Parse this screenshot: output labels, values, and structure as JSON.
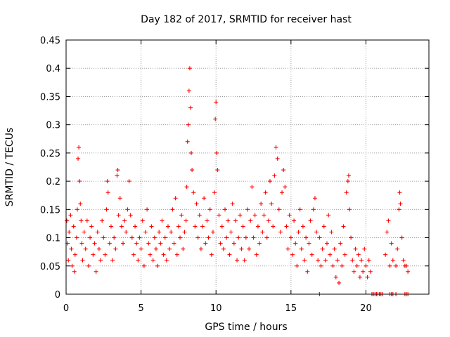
{
  "chart_data": {
    "type": "scatter",
    "title": "Day 182 of 2017, SRMTID for receiver hast",
    "xlabel": "GPS time / hours",
    "ylabel": "SRMTID / TECUs",
    "xlim": [
      0,
      24.2
    ],
    "ylim": [
      0,
      0.45
    ],
    "xticks": [
      0,
      5,
      10,
      15,
      20
    ],
    "xtick_labels": [
      "0",
      "5",
      "10",
      "15",
      "20"
    ],
    "yticks": [
      0,
      0.05,
      0.1,
      0.15,
      0.2,
      0.25,
      0.3,
      0.35,
      0.4,
      0.45
    ],
    "ytick_labels": [
      "0",
      "0.05",
      "0.1",
      "0.15",
      "0.2",
      "0.25",
      "0.3",
      "0.35",
      "0.4",
      "0.45"
    ],
    "grid": true,
    "marker": "+",
    "color": "#ff0000",
    "series": [
      {
        "points": [
          [
            0.05,
            0.13
          ],
          [
            0.1,
            0.09
          ],
          [
            0.15,
            0.06
          ],
          [
            0.2,
            0.11
          ],
          [
            0.3,
            0.14
          ],
          [
            0.35,
            0.08
          ],
          [
            0.4,
            0.05
          ],
          [
            0.5,
            0.12
          ],
          [
            0.55,
            0.04
          ],
          [
            0.6,
            0.07
          ],
          [
            0.7,
            0.1
          ],
          [
            0.75,
            0.15
          ],
          [
            0.8,
            0.24
          ],
          [
            0.85,
            0.26
          ],
          [
            0.9,
            0.2
          ],
          [
            0.95,
            0.16
          ],
          [
            1.0,
            0.13
          ],
          [
            1.05,
            0.09
          ],
          [
            1.1,
            0.06
          ],
          [
            1.2,
            0.11
          ],
          [
            1.3,
            0.08
          ],
          [
            1.4,
            0.13
          ],
          [
            1.5,
            0.05
          ],
          [
            1.6,
            0.1
          ],
          [
            1.7,
            0.12
          ],
          [
            1.8,
            0.07
          ],
          [
            1.9,
            0.09
          ],
          [
            2.0,
            0.04
          ],
          [
            2.1,
            0.11
          ],
          [
            2.2,
            0.08
          ],
          [
            2.3,
            0.06
          ],
          [
            2.4,
            0.13
          ],
          [
            2.5,
            0.1
          ],
          [
            2.6,
            0.07
          ],
          [
            2.7,
            0.15
          ],
          [
            2.75,
            0.2
          ],
          [
            2.8,
            0.18
          ],
          [
            2.9,
            0.09
          ],
          [
            3.0,
            0.12
          ],
          [
            3.1,
            0.06
          ],
          [
            3.2,
            0.1
          ],
          [
            3.3,
            0.08
          ],
          [
            3.4,
            0.21
          ],
          [
            3.45,
            0.22
          ],
          [
            3.5,
            0.14
          ],
          [
            3.6,
            0.17
          ],
          [
            3.7,
            0.12
          ],
          [
            3.8,
            0.09
          ],
          [
            3.9,
            0.13
          ],
          [
            4.0,
            0.11
          ],
          [
            4.1,
            0.15
          ],
          [
            4.2,
            0.2
          ],
          [
            4.3,
            0.14
          ],
          [
            4.4,
            0.1
          ],
          [
            4.5,
            0.07
          ],
          [
            4.6,
            0.12
          ],
          [
            4.7,
            0.09
          ],
          [
            4.8,
            0.06
          ],
          [
            4.9,
            0.1
          ],
          [
            5.0,
            0.08
          ],
          [
            5.1,
            0.13
          ],
          [
            5.2,
            0.05
          ],
          [
            5.3,
            0.11
          ],
          [
            5.4,
            0.15
          ],
          [
            5.5,
            0.09
          ],
          [
            5.6,
            0.07
          ],
          [
            5.7,
            0.12
          ],
          [
            5.8,
            0.06
          ],
          [
            5.9,
            0.1
          ],
          [
            6.0,
            0.08
          ],
          [
            6.1,
            0.05
          ],
          [
            6.2,
            0.11
          ],
          [
            6.3,
            0.09
          ],
          [
            6.4,
            0.13
          ],
          [
            6.5,
            0.07
          ],
          [
            6.6,
            0.1
          ],
          [
            6.7,
            0.06
          ],
          [
            6.8,
            0.12
          ],
          [
            6.9,
            0.08
          ],
          [
            7.0,
            0.11
          ],
          [
            7.1,
            0.15
          ],
          [
            7.2,
            0.09
          ],
          [
            7.3,
            0.17
          ],
          [
            7.4,
            0.07
          ],
          [
            7.5,
            0.12
          ],
          [
            7.6,
            0.1
          ],
          [
            7.7,
            0.14
          ],
          [
            7.8,
            0.08
          ],
          [
            7.9,
            0.11
          ],
          [
            8.0,
            0.13
          ],
          [
            8.05,
            0.19
          ],
          [
            8.1,
            0.27
          ],
          [
            8.15,
            0.3
          ],
          [
            8.2,
            0.36
          ],
          [
            8.25,
            0.4
          ],
          [
            8.3,
            0.33
          ],
          [
            8.35,
            0.25
          ],
          [
            8.4,
            0.22
          ],
          [
            8.5,
            0.18
          ],
          [
            8.6,
            0.12
          ],
          [
            8.7,
            0.16
          ],
          [
            8.8,
            0.1
          ],
          [
            8.9,
            0.14
          ],
          [
            9.0,
            0.08
          ],
          [
            9.1,
            0.12
          ],
          [
            9.2,
            0.17
          ],
          [
            9.3,
            0.09
          ],
          [
            9.4,
            0.13
          ],
          [
            9.5,
            0.1
          ],
          [
            9.6,
            0.15
          ],
          [
            9.7,
            0.07
          ],
          [
            9.8,
            0.11
          ],
          [
            9.9,
            0.18
          ],
          [
            9.95,
            0.31
          ],
          [
            10.0,
            0.34
          ],
          [
            10.05,
            0.25
          ],
          [
            10.1,
            0.22
          ],
          [
            10.2,
            0.14
          ],
          [
            10.3,
            0.09
          ],
          [
            10.4,
            0.12
          ],
          [
            10.5,
            0.08
          ],
          [
            10.6,
            0.15
          ],
          [
            10.7,
            0.1
          ],
          [
            10.8,
            0.13
          ],
          [
            10.9,
            0.07
          ],
          [
            11.0,
            0.11
          ],
          [
            11.1,
            0.16
          ],
          [
            11.2,
            0.09
          ],
          [
            11.3,
            0.13
          ],
          [
            11.4,
            0.06
          ],
          [
            11.5,
            0.1
          ],
          [
            11.6,
            0.14
          ],
          [
            11.7,
            0.08
          ],
          [
            11.8,
            0.12
          ],
          [
            11.9,
            0.06
          ],
          [
            12.0,
            0.1
          ],
          [
            12.1,
            0.15
          ],
          [
            12.2,
            0.08
          ],
          [
            12.3,
            0.13
          ],
          [
            12.4,
            0.19
          ],
          [
            12.5,
            0.1
          ],
          [
            12.6,
            0.14
          ],
          [
            12.7,
            0.07
          ],
          [
            12.8,
            0.12
          ],
          [
            12.9,
            0.09
          ],
          [
            13.0,
            0.16
          ],
          [
            13.1,
            0.11
          ],
          [
            13.2,
            0.14
          ],
          [
            13.3,
            0.18
          ],
          [
            13.4,
            0.1
          ],
          [
            13.5,
            0.13
          ],
          [
            13.6,
            0.2
          ],
          [
            13.7,
            0.16
          ],
          [
            13.8,
            0.12
          ],
          [
            13.9,
            0.21
          ],
          [
            14.0,
            0.26
          ],
          [
            14.1,
            0.24
          ],
          [
            14.2,
            0.15
          ],
          [
            14.3,
            0.11
          ],
          [
            14.4,
            0.18
          ],
          [
            14.5,
            0.22
          ],
          [
            14.6,
            0.19
          ],
          [
            14.7,
            0.12
          ],
          [
            14.8,
            0.08
          ],
          [
            14.9,
            0.14
          ],
          [
            15.0,
            0.1
          ],
          [
            15.1,
            0.07
          ],
          [
            15.2,
            0.13
          ],
          [
            15.3,
            0.09
          ],
          [
            15.4,
            0.05
          ],
          [
            15.5,
            0.11
          ],
          [
            15.6,
            0.15
          ],
          [
            15.7,
            0.08
          ],
          [
            15.8,
            0.12
          ],
          [
            15.9,
            0.06
          ],
          [
            16.0,
            0.1
          ],
          [
            16.1,
            0.04
          ],
          [
            16.2,
            0.09
          ],
          [
            16.3,
            0.13
          ],
          [
            16.4,
            0.07
          ],
          [
            16.5,
            0.15
          ],
          [
            16.6,
            0.17
          ],
          [
            16.7,
            0.11
          ],
          [
            16.8,
            0.06
          ],
          [
            16.9,
            0.1
          ],
          [
            17.0,
            0.05
          ],
          [
            17.1,
            0.08
          ],
          [
            17.2,
            0.12
          ],
          [
            17.3,
            0.06
          ],
          [
            17.4,
            0.09
          ],
          [
            17.5,
            0.14
          ],
          [
            17.6,
            0.07
          ],
          [
            17.7,
            0.11
          ],
          [
            17.8,
            0.05
          ],
          [
            17.9,
            0.08
          ],
          [
            18.0,
            0.03
          ],
          [
            18.1,
            0.06
          ],
          [
            18.2,
            0.02
          ],
          [
            18.3,
            0.09
          ],
          [
            18.4,
            0.05
          ],
          [
            18.5,
            0.12
          ],
          [
            18.6,
            0.07
          ],
          [
            18.7,
            0.18
          ],
          [
            18.8,
            0.2
          ],
          [
            18.85,
            0.21
          ],
          [
            18.9,
            0.15
          ],
          [
            19.0,
            0.1
          ],
          [
            19.1,
            0.06
          ],
          [
            19.2,
            0.04
          ],
          [
            19.3,
            0.08
          ],
          [
            19.4,
            0.05
          ],
          [
            19.5,
            0.07
          ],
          [
            19.6,
            0.03
          ],
          [
            19.7,
            0.06
          ],
          [
            19.8,
            0.04
          ],
          [
            19.9,
            0.08
          ],
          [
            20.0,
            0.05
          ],
          [
            20.1,
            0.03
          ],
          [
            20.2,
            0.06
          ],
          [
            20.3,
            0.04
          ],
          [
            21.3,
            0.07
          ],
          [
            21.4,
            0.11
          ],
          [
            21.5,
            0.13
          ],
          [
            21.6,
            0.05
          ],
          [
            21.7,
            0.09
          ],
          [
            21.8,
            0.06
          ],
          [
            22.0,
            0.05
          ],
          [
            22.1,
            0.08
          ],
          [
            22.2,
            0.15
          ],
          [
            22.25,
            0.18
          ],
          [
            22.3,
            0.16
          ],
          [
            22.4,
            0.1
          ],
          [
            22.5,
            0.06
          ],
          [
            22.6,
            0.05
          ],
          [
            22.7,
            0.05
          ],
          [
            22.8,
            0.04
          ],
          [
            16.9,
            0
          ],
          [
            20.4,
            0
          ],
          [
            20.5,
            0
          ],
          [
            20.6,
            0
          ],
          [
            20.7,
            0
          ],
          [
            20.8,
            0
          ],
          [
            20.9,
            0
          ],
          [
            21.0,
            0
          ],
          [
            21.1,
            0
          ],
          [
            21.6,
            0
          ],
          [
            21.7,
            0
          ],
          [
            21.8,
            0
          ],
          [
            22.0,
            0
          ],
          [
            22.6,
            0
          ],
          [
            22.7,
            0
          ],
          [
            22.8,
            0
          ]
        ]
      }
    ]
  }
}
